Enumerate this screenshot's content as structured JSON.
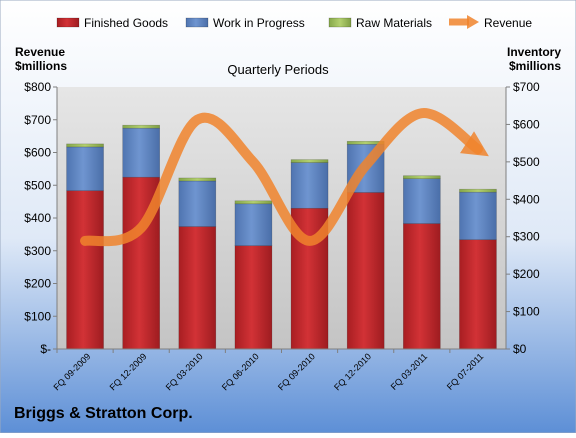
{
  "chart_data": {
    "type": "bar",
    "title": "Quarterly Periods",
    "company": "Briggs & Stratton Corp.",
    "left_axis": {
      "label_line1": "Revenue",
      "label_line2": "$millions",
      "ylim": [
        0,
        800
      ],
      "ticks": [
        "$-",
        "$100",
        "$200",
        "$300",
        "$400",
        "$500",
        "$600",
        "$700",
        "$800"
      ]
    },
    "right_axis": {
      "label_line1": "Inventory",
      "label_line2": "$millions",
      "ylim": [
        0,
        700
      ],
      "ticks": [
        "$0",
        "$100",
        "$200",
        "$300",
        "$400",
        "$500",
        "$600",
        "$700"
      ]
    },
    "categories": [
      "FQ 09-2009",
      "FQ 12-2009",
      "FQ 03-2010",
      "FQ 06-2010",
      "FQ 09-2010",
      "FQ 12-2010",
      "FQ 03-2011",
      "FQ 07-2011"
    ],
    "series": [
      {
        "name": "Finished Goods",
        "type": "stacked-bar",
        "axis": "right",
        "color": "#c0262a",
        "values": [
          423,
          459,
          327,
          276,
          376,
          418,
          335,
          292
        ]
      },
      {
        "name": "Work in Progress",
        "type": "stacked-bar",
        "axis": "right",
        "color": "#5f86c4",
        "values": [
          117,
          131,
          122,
          112,
          122,
          129,
          120,
          127
        ]
      },
      {
        "name": "Raw Materials",
        "type": "stacked-bar",
        "axis": "right",
        "color": "#9bbb59",
        "values": [
          8,
          8,
          8,
          8,
          8,
          8,
          8,
          8
        ]
      },
      {
        "name": "Revenue",
        "type": "line",
        "axis": "left",
        "color": "#f0842d",
        "values": [
          330,
          370,
          700,
          570,
          330,
          560,
          720,
          610
        ]
      }
    ],
    "grid": false,
    "legend_position": "top"
  }
}
